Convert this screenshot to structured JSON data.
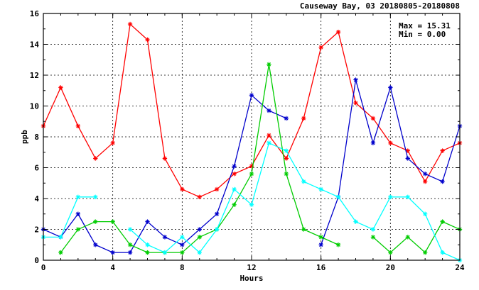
{
  "chart_data": {
    "type": "line",
    "title": "Causeway Bay, 03 20180805-20180808",
    "xlabel": "Hours",
    "ylabel": "ppb",
    "xlim": [
      0,
      24
    ],
    "ylim": [
      0,
      16
    ],
    "xticks": [
      0,
      4,
      8,
      12,
      16,
      20,
      24
    ],
    "yticks": [
      0,
      2,
      4,
      6,
      8,
      10,
      12,
      14,
      16
    ],
    "grid": true,
    "legend": "none",
    "stats": {
      "max_label": "Max = 15.31",
      "min_label": "Min =  0.00"
    },
    "x": [
      0,
      1,
      2,
      3,
      4,
      5,
      6,
      7,
      8,
      9,
      10,
      11,
      12,
      13,
      14,
      15,
      16,
      17,
      18,
      19,
      20,
      21,
      22,
      23,
      24
    ],
    "series": [
      {
        "color": "#ff0000",
        "values": [
          8.7,
          11.2,
          8.7,
          6.6,
          7.6,
          15.31,
          14.3,
          6.6,
          4.6,
          4.1,
          4.6,
          5.6,
          6.1,
          8.1,
          6.6,
          9.2,
          13.8,
          14.8,
          10.2,
          9.2,
          7.6,
          7.1,
          5.1,
          7.1,
          7.6
        ]
      },
      {
        "color": "#0000cc",
        "values": [
          2.0,
          1.5,
          3.0,
          1.0,
          0.5,
          0.5,
          2.5,
          1.5,
          1.0,
          2.0,
          3.0,
          6.1,
          10.7,
          9.7,
          9.2,
          null,
          1.0,
          4.1,
          11.7,
          7.6,
          11.2,
          6.6,
          5.6,
          5.1,
          8.7
        ]
      },
      {
        "color": "#00cc00",
        "values": [
          null,
          0.5,
          2.0,
          2.5,
          2.5,
          1.0,
          0.5,
          0.5,
          0.5,
          1.5,
          2.0,
          3.6,
          5.6,
          12.7,
          5.6,
          2.0,
          1.5,
          1.0,
          null,
          1.5,
          0.5,
          1.5,
          0.5,
          2.5,
          2.0
        ]
      },
      {
        "color": "#00ffff",
        "values": [
          1.5,
          1.5,
          4.1,
          4.1,
          null,
          2.0,
          1.0,
          0.5,
          1.5,
          0.5,
          2.0,
          4.6,
          3.6,
          7.6,
          7.1,
          5.1,
          4.6,
          4.1,
          2.5,
          2.0,
          4.1,
          4.1,
          3.0,
          0.5,
          0.0
        ]
      }
    ]
  }
}
